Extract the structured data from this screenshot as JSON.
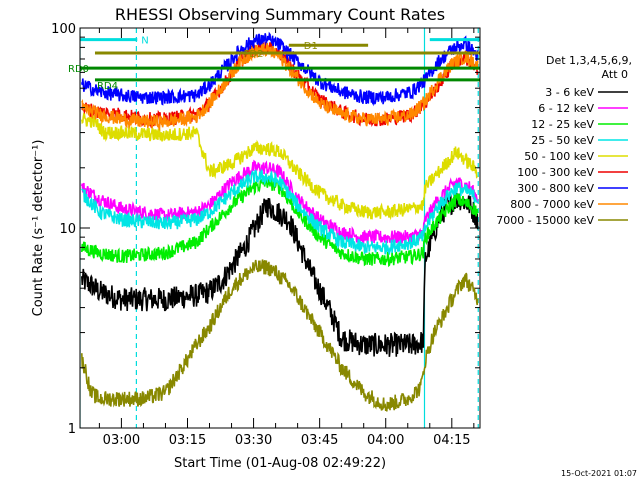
{
  "chart_data": {
    "type": "line",
    "title": "RHESSI Observing Summary Count Rates",
    "xlabel": "Start Time (01-Aug-08 02:49:22)",
    "ylabel": "Count Rate (s⁻¹ detector⁻¹)",
    "yscale": "log",
    "ylim": [
      1,
      100
    ],
    "xlim_min": [
      -9.4,
      81.4
    ],
    "y_tick_labels": [
      "1",
      "10",
      "100"
    ],
    "x_ticks": [
      {
        "min": 0,
        "label": "03:00"
      },
      {
        "min": 15,
        "label": "03:15"
      },
      {
        "min": 30,
        "label": "03:30"
      },
      {
        "min": 45,
        "label": "03:45"
      },
      {
        "min": 60,
        "label": "04:00"
      },
      {
        "min": 75,
        "label": "04:15"
      }
    ],
    "grid": false,
    "legend": {
      "placement": "right",
      "header": [
        "Det 1,3,4,5,6,9,",
        "Att 0"
      ],
      "entries": [
        {
          "label": "3 - 6 keV",
          "color": "#000000"
        },
        {
          "label": "6 - 12 keV",
          "color": "#ff00ff"
        },
        {
          "label": "12 - 25 keV",
          "color": "#00ee00"
        },
        {
          "label": "25 - 50 keV",
          "color": "#00e5e5"
        },
        {
          "label": "50 - 100 keV",
          "color": "#dddd00"
        },
        {
          "label": "100 - 300 keV",
          "color": "#ee0000"
        },
        {
          "label": "300 - 800 keV",
          "color": "#0000ff"
        },
        {
          "label": "800 - 7000 keV",
          "color": "#ff8800"
        },
        {
          "label": "7000 - 15000 keV",
          "color": "#888800"
        }
      ]
    },
    "flags": [
      {
        "label": "N",
        "color": "#00dddd",
        "x": [
          -9.4,
          3.6
        ],
        "y": 87.5
      },
      {
        "label": "",
        "color": "#00dddd",
        "x": [
          70,
          81.4
        ],
        "y": 87.5
      },
      {
        "label": "RD0",
        "color": "#008800",
        "x": [
          -9.4,
          81.4
        ],
        "y": 63
      },
      {
        "label": "RD4",
        "color": "#008800",
        "x": [
          -6,
          81.4
        ],
        "y": 55
      },
      {
        "label": "FD2",
        "color": "#888800",
        "x": [
          -6,
          81.4
        ],
        "y": 75
      },
      {
        "label": "D1",
        "color": "#888800",
        "x": [
          38,
          56
        ],
        "y": 82
      }
    ],
    "markers": [
      {
        "min": -9.4,
        "color": "#00dddd",
        "style": "solid"
      },
      {
        "min": 3.4,
        "color": "#00dddd",
        "style": "dashed"
      },
      {
        "min": 68.8,
        "color": "#00dddd",
        "style": "solid"
      },
      {
        "min": 81,
        "color": "#00dddd",
        "style": "dashed"
      }
    ],
    "series": [
      {
        "name": "3 - 6 keV",
        "color": "#000000",
        "x": [
          -9,
          -7,
          -5,
          0,
          10,
          17,
          20,
          23,
          28,
          33,
          38,
          43,
          47,
          50,
          55,
          60,
          66,
          68.5,
          69,
          72,
          74,
          76,
          77,
          79,
          81
        ],
        "y": [
          5.5,
          5.2,
          4.8,
          4.4,
          4.4,
          4.6,
          4.8,
          5.5,
          8,
          13,
          11,
          6,
          4,
          2.8,
          2.6,
          2.6,
          2.6,
          2.7,
          7,
          11,
          13,
          14,
          14,
          13,
          11
        ]
      },
      {
        "name": "6 - 12 keV",
        "color": "#ff00ff",
        "x": [
          -9,
          -5,
          0,
          10,
          17,
          20,
          25,
          30,
          33,
          36,
          40,
          45,
          50,
          55,
          60,
          66,
          68.5,
          69,
          72,
          76,
          79,
          81
        ],
        "y": [
          16,
          14,
          12.5,
          11.5,
          12,
          13,
          17,
          20,
          20,
          19,
          14,
          11,
          9.5,
          9,
          9,
          9,
          9.5,
          11,
          14,
          17,
          16,
          14
        ]
      },
      {
        "name": "12 - 25 keV",
        "color": "#00ee00",
        "x": [
          -9,
          -5,
          0,
          10,
          17,
          20,
          25,
          30,
          33,
          36,
          40,
          45,
          50,
          55,
          60,
          66,
          68.5,
          69,
          72,
          76,
          79,
          81
        ],
        "y": [
          8,
          7.5,
          7.2,
          7.5,
          8.5,
          10,
          13,
          16,
          17,
          16,
          12,
          9,
          7.5,
          7,
          7,
          7.2,
          7.5,
          9,
          11,
          14,
          13,
          12
        ]
      },
      {
        "name": "25 - 50 keV",
        "color": "#00e5e5",
        "x": [
          -9,
          -5,
          0,
          10,
          17,
          20,
          25,
          30,
          33,
          36,
          40,
          45,
          50,
          55,
          60,
          66,
          68.5,
          69,
          72,
          76,
          79,
          81
        ],
        "y": [
          15,
          12,
          11,
          10.5,
          11,
          12,
          15,
          18,
          18,
          17,
          13,
          10,
          8.5,
          8,
          8,
          8.5,
          9,
          10,
          13,
          16,
          15,
          14
        ]
      },
      {
        "name": "50 - 100 keV",
        "color": "#dddd00",
        "x": [
          -9,
          -6,
          -4,
          0,
          10,
          17,
          20,
          25,
          30,
          33,
          36,
          40,
          45,
          50,
          55,
          60,
          66,
          68.5,
          69,
          72,
          76,
          79,
          81
        ],
        "y": [
          35,
          34,
          30,
          30,
          29,
          30,
          19,
          21,
          25,
          25,
          24,
          19,
          15,
          13,
          12,
          12,
          12.5,
          13,
          16,
          19,
          24,
          21,
          19
        ]
      },
      {
        "name": "100 - 300 keV",
        "color": "#ee0000",
        "x": [
          -9,
          -5,
          0,
          5,
          10,
          17,
          20,
          24,
          27,
          30,
          33,
          36,
          40,
          45,
          50,
          55,
          60,
          66,
          69,
          72,
          75,
          78,
          81
        ],
        "y": [
          40,
          38,
          37,
          35,
          35,
          37,
          42,
          55,
          68,
          78,
          80,
          75,
          58,
          44,
          38,
          35,
          35,
          37,
          42,
          52,
          65,
          72,
          60
        ]
      },
      {
        "name": "300 - 800 keV",
        "color": "#0000ff",
        "x": [
          -9,
          -5,
          0,
          5,
          10,
          17,
          20,
          24,
          27,
          30,
          33,
          36,
          40,
          45,
          50,
          55,
          60,
          66,
          69,
          72,
          75,
          78,
          81
        ],
        "y": [
          52,
          48,
          46,
          45,
          45,
          46,
          52,
          65,
          78,
          86,
          88,
          82,
          68,
          54,
          48,
          45,
          45,
          48,
          55,
          68,
          78,
          84,
          72
        ]
      },
      {
        "name": "800 - 7000 keV",
        "color": "#ff8800",
        "x": [
          -9,
          -5,
          0,
          5,
          10,
          17,
          20,
          24,
          27,
          30,
          33,
          36,
          40,
          45,
          50,
          55,
          60,
          66,
          69,
          72,
          75,
          78,
          81
        ],
        "y": [
          40,
          37,
          35,
          34,
          34,
          36,
          42,
          55,
          68,
          76,
          78,
          72,
          56,
          42,
          37,
          35,
          35,
          37,
          43,
          55,
          66,
          72,
          65
        ]
      },
      {
        "name": "7000 - 15000 keV",
        "color": "#888800",
        "x": [
          -9,
          -8,
          -7,
          -5,
          0,
          5,
          10,
          15,
          17,
          20,
          23,
          25,
          28,
          30,
          33,
          35,
          38,
          40,
          43,
          45,
          50,
          55,
          60,
          65,
          68,
          69,
          71,
          73,
          75,
          77,
          78,
          79,
          81
        ],
        "y": [
          2.2,
          1.9,
          1.5,
          1.4,
          1.4,
          1.4,
          1.5,
          2.2,
          2.6,
          3.2,
          4.2,
          5,
          5.8,
          6.3,
          6.4,
          6,
          5.2,
          4.5,
          3.5,
          3,
          2,
          1.5,
          1.3,
          1.4,
          1.6,
          2.2,
          3,
          3.6,
          4.4,
          5.2,
          5.6,
          5.2,
          4.4
        ]
      }
    ],
    "footer_timestamp": "15-Oct-2021 01:07"
  }
}
